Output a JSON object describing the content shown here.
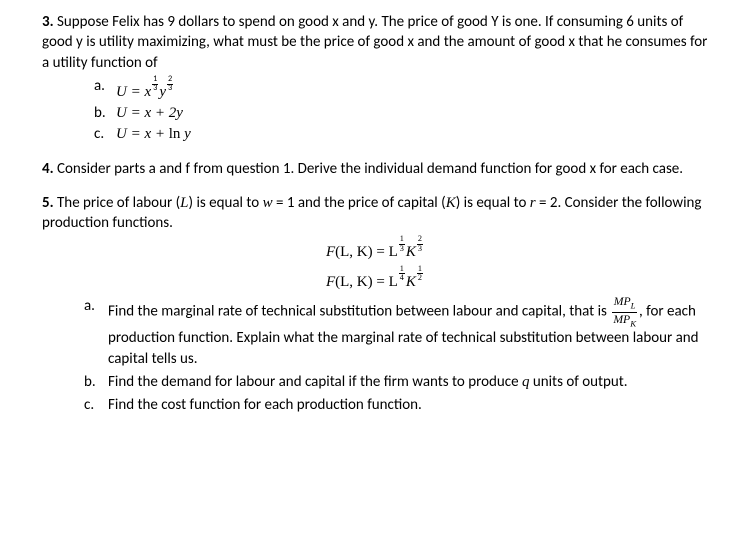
{
  "colors": {
    "text": "#000000",
    "bg": "#ffffff"
  },
  "typography": {
    "body_family": "Calibri, Arial, sans-serif",
    "math_family": "Cambria Math, Times New Roman, serif",
    "body_size_pt": 11
  },
  "q3": {
    "number": "3.",
    "text_1": " Suppose Felix has 9 dollars to spend on good x and y. The price of good Y is one. If consuming 6 units of good y is utility maximizing, what must be the price of good x and the amount of good x that he consumes for a utility function of",
    "items": {
      "a": {
        "marker": "a.",
        "prefix": "U",
        "eq": " = ",
        "x": "x",
        "y": "y",
        "e1n": "1",
        "e1d": "3",
        "e2n": "2",
        "e2d": "3"
      },
      "b": {
        "marker": "b.",
        "prefix": "U",
        "eq_text": " = x + 2y"
      },
      "c": {
        "marker": "c.",
        "prefix": "U",
        "eq_text_1": " = x + ",
        "ln": "ln",
        "eq_text_2": " y"
      }
    }
  },
  "q4": {
    "number": "4.",
    "text": " Consider parts a and f from question 1. Derive the individual demand function for good x for each case."
  },
  "q5": {
    "number": "5.",
    "text_1": " The price of labour (",
    "L": "L",
    "text_2": ") is equal to ",
    "w": "w",
    "text_3": " = 1 and the price of capital (",
    "K": "K",
    "text_4": ") is equal to ",
    "r": "r",
    "text_5": " = 2. Consider the following production functions.",
    "fn1": {
      "F": "F",
      "args": "(L, K) = L",
      "e1n": "1",
      "e1d": "3",
      "mid": "K",
      "e2n": "2",
      "e2d": "3"
    },
    "fn2": {
      "F": "F",
      "args": "(L, K) = L",
      "e1n": "1",
      "e1d": "4",
      "mid": "K",
      "e2n": "1",
      "e2d": "2"
    },
    "parts": {
      "a": {
        "marker": "a.",
        "t1": "Find the marginal rate of technical substitution between labour and capital, that is ",
        "frac_num": "MP",
        "frac_num_sub": "L",
        "frac_den": "MP",
        "frac_den_sub": "K",
        "t2": ", for each production function. Explain what the marginal rate of technical substitution between labour and capital tells us."
      },
      "b": {
        "marker": "b.",
        "t1": "Find the demand for labour and capital if the firm wants to produce ",
        "q": "q",
        "t2": " units of output."
      },
      "c": {
        "marker": "c.",
        "t1": "Find the cost function for each production function."
      }
    }
  }
}
